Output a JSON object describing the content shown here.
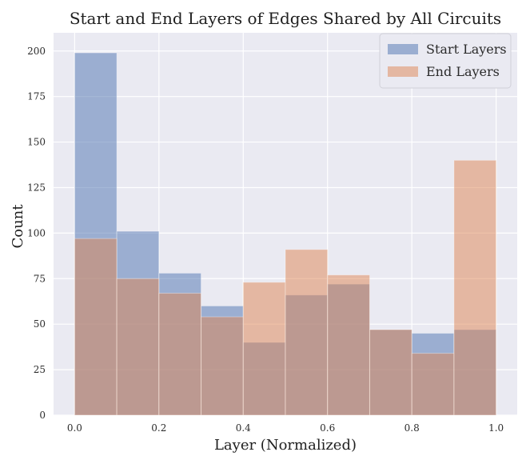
{
  "chart_data": {
    "type": "bar",
    "title": "Start and End Layers of Edges Shared by All Circuits",
    "xlabel": "Layer (Normalized)",
    "ylabel": "Count",
    "xlim": [
      -0.05,
      1.05
    ],
    "ylim": [
      0,
      210
    ],
    "bin_edges": [
      0.0,
      0.1,
      0.2,
      0.3,
      0.4,
      0.5,
      0.6,
      0.7,
      0.8,
      0.9,
      1.0
    ],
    "x_ticks": [
      0.0,
      0.2,
      0.4,
      0.6,
      0.8,
      1.0
    ],
    "x_tick_labels": [
      "0.0",
      "0.2",
      "0.4",
      "0.6",
      "0.8",
      "1.0"
    ],
    "y_ticks": [
      0,
      25,
      50,
      75,
      100,
      125,
      150,
      175,
      200
    ],
    "y_tick_labels": [
      "0",
      "25",
      "50",
      "75",
      "100",
      "125",
      "150",
      "175",
      "200"
    ],
    "grid": true,
    "legend_position": "top-right",
    "series": [
      {
        "name": "Start Layers",
        "values": [
          199,
          101,
          78,
          60,
          40,
          66,
          72,
          47,
          45,
          47
        ],
        "color": "#4c72b0"
      },
      {
        "name": "End Layers",
        "values": [
          97,
          75,
          67,
          54,
          73,
          91,
          77,
          47,
          34,
          140
        ],
        "color": "#dd8452"
      }
    ]
  }
}
